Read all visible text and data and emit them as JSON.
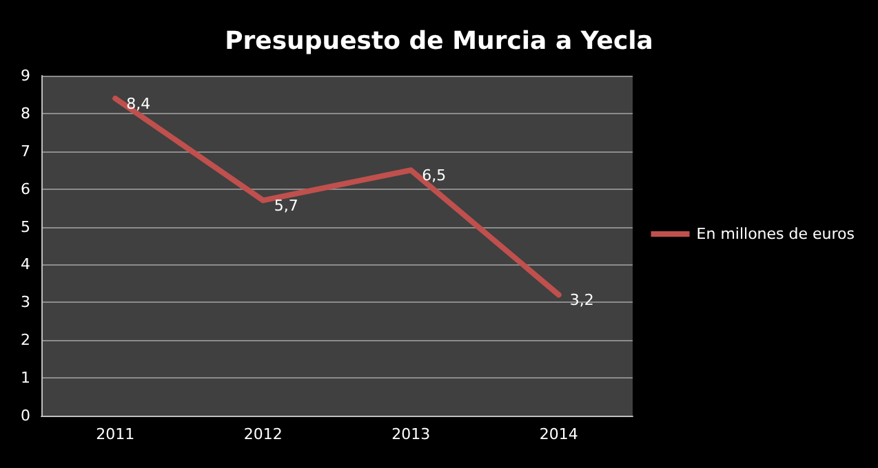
{
  "chart_data": {
    "type": "line",
    "title": "Presupuesto de Murcia a Yecla",
    "categories": [
      "2011",
      "2012",
      "2013",
      "2014"
    ],
    "series": [
      {
        "name": "En millones de euros",
        "color": "#c0504d",
        "values": [
          8.4,
          5.7,
          6.5,
          3.2
        ],
        "value_labels": [
          "8,4",
          "5,7",
          "6,5",
          "3,2"
        ]
      }
    ],
    "ylim": [
      0,
      9
    ],
    "yticks": [
      0,
      1,
      2,
      3,
      4,
      5,
      6,
      7,
      8,
      9
    ],
    "grid": "y",
    "legend": "right",
    "marker": "none",
    "line_style": "solid"
  }
}
